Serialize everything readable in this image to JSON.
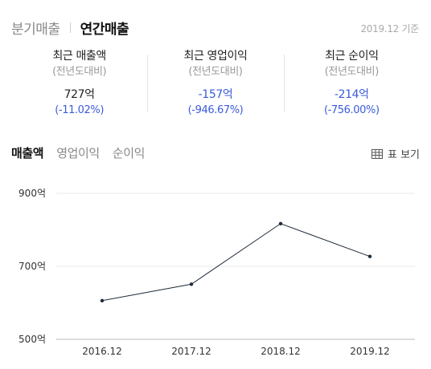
{
  "period_tabs": {
    "quarterly": "분기매출",
    "annual": "연간매출"
  },
  "base_date": "2019.12 기준",
  "metrics": [
    {
      "title": "최근 매출액",
      "sub": "(전년도대비)",
      "value": "727억",
      "change": "(-11.02%)",
      "tone": "dark"
    },
    {
      "title": "최근 영업이익",
      "sub": "(전년도대비)",
      "value": "-157억",
      "change": "(-946.67%)",
      "tone": "blue"
    },
    {
      "title": "최근 순이익",
      "sub": "(전년도대비)",
      "value": "-214억",
      "change": "(-756.00%)",
      "tone": "blue"
    }
  ],
  "chart_tabs": {
    "revenue": "매출액",
    "operating_profit": "영업이익",
    "net_profit": "순이익"
  },
  "table_toggle": {
    "label": "표 보기",
    "icon": "table-icon"
  },
  "colors": {
    "line": "#1e2b3a",
    "grid": "#e8e8e8",
    "accent_blue": "#3b5bdb"
  },
  "chart_data": {
    "type": "line",
    "categories": [
      "2016.12",
      "2017.12",
      "2018.12",
      "2019.12"
    ],
    "values": [
      606,
      651,
      817,
      727
    ],
    "y_ticks": [
      {
        "value": 900,
        "label": "900억"
      },
      {
        "value": 700,
        "label": "700억"
      },
      {
        "value": 500,
        "label": "500억"
      }
    ],
    "ylim": [
      500,
      900
    ],
    "grid": true,
    "title": "",
    "xlabel": "",
    "ylabel": ""
  }
}
